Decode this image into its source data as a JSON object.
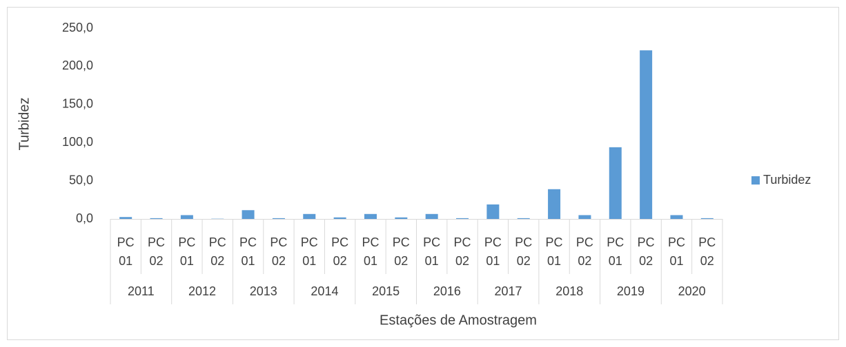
{
  "chart_data": {
    "type": "bar",
    "y_label": "Turbidez",
    "x_label": "Estações de Amostragem",
    "categories": [
      "PC 01",
      "PC 02",
      "PC 01",
      "PC 02",
      "PC 01",
      "PC 02",
      "PC 01",
      "PC 02",
      "PC 01",
      "PC 02",
      "PC 01",
      "PC 02",
      "PC 01",
      "PC 02",
      "PC 01",
      "PC 02",
      "PC 01",
      "PC 02",
      "PC 01",
      "PC 02"
    ],
    "groups": [
      "2011",
      "2012",
      "2013",
      "2014",
      "2015",
      "2016",
      "2017",
      "2018",
      "2019",
      "2020"
    ],
    "series": [
      {
        "name": "Turbidez",
        "color": "#5b9bd5",
        "values": [
          2.5,
          1,
          5,
          0.3,
          11.5,
          1,
          6.5,
          2,
          6.5,
          2,
          6.5,
          1,
          19,
          1,
          39,
          5,
          94,
          221,
          5,
          1
        ]
      }
    ],
    "ylim": [
      0,
      250
    ],
    "yticks": [
      {
        "value": 0,
        "label": "0,0"
      },
      {
        "value": 50,
        "label": "50,0"
      },
      {
        "value": 100,
        "label": "100,0"
      },
      {
        "value": 150,
        "label": "150,0"
      },
      {
        "value": 200,
        "label": "200,0"
      },
      {
        "value": 250,
        "label": "250,0"
      }
    ],
    "grid": false,
    "legend": "right"
  }
}
